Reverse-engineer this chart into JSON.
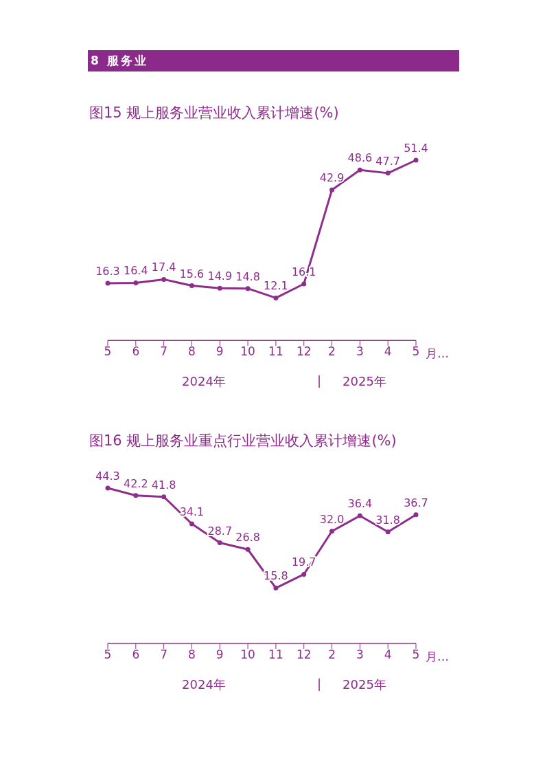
{
  "chart_data": [
    {
      "type": "line",
      "title": "8 服务业",
      "subtitle": "图15 规上服务业营业收入累计增速(%)",
      "xlabel": "月…",
      "categories": [
        "5",
        "6",
        "7",
        "8",
        "9",
        "10",
        "11",
        "12",
        "2",
        "3",
        "4",
        "5"
      ],
      "series": [
        {
          "color": "#8e2d8c",
          "values": [
            16.3,
            16.4,
            17.4,
            15.6,
            14.9,
            14.8,
            12.1,
            16.1,
            42.9,
            48.6,
            47.7,
            51.4
          ],
          "value_labels": [
            "16.3",
            "16.4",
            "17.4",
            "15.6",
            "14.9",
            "14.8",
            "12.1",
            "16.1",
            "42.9",
            "48.6",
            "47.7",
            "51.4"
          ]
        }
      ],
      "annotations": [
        "2024年",
        "|",
        "2025年"
      ],
      "marker": "circle",
      "line_style": "solid",
      "tick_labels": "x"
    },
    {
      "type": "line",
      "title": "图16 规上服务业重点行业营业收入累计增速(%)",
      "xlabel": "月…",
      "categories": [
        "5",
        "6",
        "7",
        "8",
        "9",
        "10",
        "11",
        "12",
        "2",
        "3",
        "4",
        "5"
      ],
      "series": [
        {
          "color": "#8e2d8c",
          "values": [
            44.3,
            42.2,
            41.8,
            34.1,
            28.7,
            26.8,
            15.8,
            19.7,
            32.0,
            36.4,
            31.8,
            36.7
          ],
          "value_labels": [
            "44.3",
            "42.2",
            "41.8",
            "34.1",
            "28.7",
            "26.8",
            "15.8",
            "19.7",
            "32.0",
            "36.4",
            "31.8",
            "36.7"
          ]
        }
      ],
      "annotations": [
        "2024年",
        "|",
        "2025年"
      ],
      "marker": "circle",
      "line_style": "solid",
      "tick_labels": "x"
    }
  ]
}
